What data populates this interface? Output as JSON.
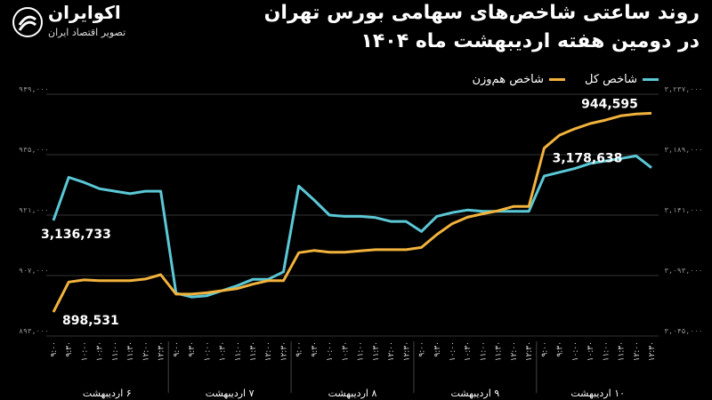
{
  "title_line1": "روند ساعتی شاخص‌های سهامی بورس تهران",
  "title_line2": "در دومین هفته اردیبهشت ماه ۱۴۰۴",
  "brand": {
    "name": "اکوایران",
    "tagline": "تصویر اقتصاد ایران",
    "logo_icon": "swirl-logo-icon"
  },
  "colors": {
    "total": "#5bc8d6",
    "equal": "#f2b33d",
    "background": "#000000"
  },
  "chart_data": {
    "type": "line",
    "legend": [
      "شاخص کل",
      "شاخص هم‌وزن"
    ],
    "left_axis": {
      "labels": [
        "۹۴۹,۰۰۰",
        "۹۳۵,۰۰۰",
        "۹۲۱,۰۰۰",
        "۹۰۷,۰۰۰",
        "۸۹۳,۰۰۰"
      ],
      "ylim": [
        893000,
        949000
      ]
    },
    "right_axis": {
      "labels": [
        "۳,۲۳۷,۰۰۰",
        "۳,۱۸۹,۰۰۰",
        "۳,۱۴۱,۰۰۰",
        "۳,۰۹۳,۰۰۰",
        "۳,۰۴۵,۰۰۰"
      ],
      "ylim": [
        3045000,
        3237000
      ]
    },
    "hours": [
      "۹:۰۰",
      "۹:۳۰",
      "۱۰:۰۰",
      "۱۰:۳۰",
      "۱۱:۰۰",
      "۱۱:۳۰",
      "۱۲:۰۰",
      "۱۲:۳۰"
    ],
    "days": [
      "۶ اردیبهشت",
      "۷ اردیبهشت",
      "۸ اردیبهشت",
      "۹ اردیبهشت",
      "۱۰ اردیبهشت"
    ],
    "series": [
      {
        "name": "شاخص کل",
        "axis": "right",
        "values": [
          3136733,
          3171000,
          3167000,
          3162000,
          3160000,
          3158000,
          3160000,
          3160000,
          3079000,
          3076000,
          3077000,
          3081000,
          3085000,
          3090000,
          3090000,
          3096000,
          3164000,
          3153000,
          3141000,
          3140000,
          3140000,
          3139000,
          3136000,
          3136000,
          3128000,
          3140000,
          3143000,
          3145000,
          3144000,
          3144000,
          3144000,
          3144000,
          3172000,
          3175000,
          3178000,
          3182000,
          3184000,
          3186000,
          3188000,
          3178638
        ]
      },
      {
        "name": "شاخص هم‌وزن",
        "axis": "left",
        "values": [
          898531,
          905500,
          906000,
          905800,
          905800,
          905800,
          906200,
          907200,
          902700,
          902700,
          903000,
          903500,
          904000,
          905000,
          905800,
          905800,
          912300,
          912800,
          912400,
          912400,
          912700,
          913000,
          913000,
          913000,
          913500,
          916500,
          919000,
          920500,
          921300,
          922000,
          923000,
          923000,
          936500,
          939500,
          941000,
          942200,
          943000,
          944000,
          944400,
          944595
        ]
      }
    ],
    "annotations": {
      "total_start": "3,136,733",
      "total_end": "3,178,638",
      "equal_start": "898,531",
      "equal_end": "944,595"
    }
  }
}
